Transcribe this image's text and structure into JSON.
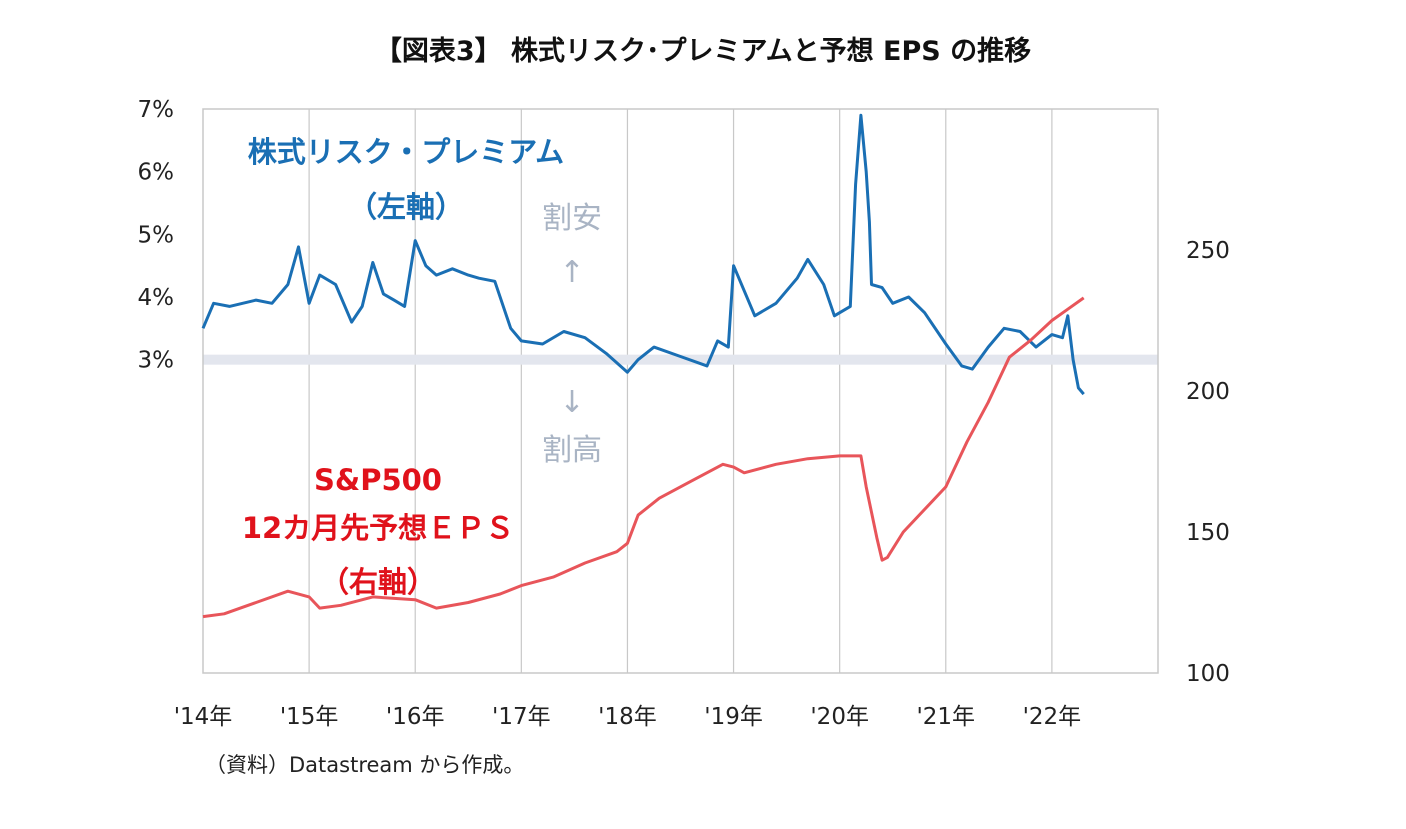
{
  "title": "【図表3】 株式リスク･プレミアムと予想 EPS の推移",
  "source": "（資料）Datastream から作成。",
  "chart_data": {
    "type": "line",
    "x_tick_labels": [
      "'14年",
      "'15年",
      "'16年",
      "'17年",
      "'18年",
      "'19年",
      "'20年",
      "'21年",
      "'22年"
    ],
    "x_range": [
      2014.0,
      2023.0
    ],
    "left_axis": {
      "tick_labels": [
        "7%",
        "6%",
        "5%",
        "4%",
        "3%"
      ],
      "ticks": [
        7,
        6,
        5,
        4,
        3
      ],
      "range": [
        -2,
        7
      ]
    },
    "right_axis": {
      "tick_labels": [
        "250",
        "200",
        "150",
        "100"
      ],
      "ticks": [
        250,
        200,
        150,
        100
      ],
      "range": [
        100,
        300
      ]
    },
    "reference_line": 3.0,
    "annotations": {
      "cheap": "割安",
      "expensive": "割高",
      "up_arrow": "↑",
      "down_arrow": "↓"
    },
    "series": [
      {
        "name": "株式リスク・プレミアム",
        "name_line2": "（左軸）",
        "axis": "left",
        "color": "#1a6fb4",
        "x": [
          2014.0,
          2014.1,
          2014.25,
          2014.5,
          2014.65,
          2014.8,
          2014.9,
          2015.0,
          2015.1,
          2015.25,
          2015.4,
          2015.5,
          2015.6,
          2015.7,
          2015.8,
          2015.9,
          2016.0,
          2016.1,
          2016.2,
          2016.35,
          2016.5,
          2016.6,
          2016.75,
          2016.9,
          2017.0,
          2017.2,
          2017.4,
          2017.6,
          2017.8,
          2018.0,
          2018.1,
          2018.25,
          2018.5,
          2018.75,
          2018.85,
          2018.95,
          2019.0,
          2019.2,
          2019.4,
          2019.6,
          2019.7,
          2019.85,
          2019.95,
          2020.1,
          2020.15,
          2020.2,
          2020.25,
          2020.28,
          2020.3,
          2020.4,
          2020.5,
          2020.65,
          2020.8,
          2021.0,
          2021.15,
          2021.25,
          2021.4,
          2021.55,
          2021.7,
          2021.85,
          2022.0,
          2022.1,
          2022.15,
          2022.2,
          2022.25,
          2022.3
        ],
        "y": [
          3.5,
          3.9,
          3.85,
          3.95,
          3.9,
          4.2,
          4.8,
          3.9,
          4.35,
          4.2,
          3.6,
          3.85,
          4.55,
          4.05,
          3.95,
          3.85,
          4.9,
          4.5,
          4.35,
          4.45,
          4.35,
          4.3,
          4.25,
          3.5,
          3.3,
          3.25,
          3.45,
          3.35,
          3.1,
          2.8,
          3.0,
          3.2,
          3.05,
          2.9,
          3.3,
          3.2,
          4.5,
          3.7,
          3.9,
          4.3,
          4.6,
          4.2,
          3.7,
          3.85,
          5.8,
          6.9,
          6.0,
          5.2,
          4.2,
          4.15,
          3.9,
          4.0,
          3.75,
          3.25,
          2.9,
          2.85,
          3.2,
          3.5,
          3.45,
          3.2,
          3.4,
          3.35,
          3.7,
          3.0,
          2.55,
          2.45
        ]
      },
      {
        "name": "S&P500",
        "name_line2": "12カ月先予想ＥＰＳ",
        "name_line3": "（右軸）",
        "axis": "right",
        "color": "#e8555a",
        "x": [
          2014.0,
          2014.2,
          2014.5,
          2014.8,
          2015.0,
          2015.1,
          2015.3,
          2015.6,
          2016.0,
          2016.2,
          2016.5,
          2016.8,
          2017.0,
          2017.3,
          2017.6,
          2017.9,
          2018.0,
          2018.1,
          2018.3,
          2018.6,
          2018.9,
          2019.0,
          2019.1,
          2019.4,
          2019.7,
          2020.0,
          2020.2,
          2020.25,
          2020.35,
          2020.4,
          2020.45,
          2020.6,
          2020.8,
          2021.0,
          2021.2,
          2021.4,
          2021.6,
          2021.8,
          2022.0,
          2022.15,
          2022.3
        ],
        "y": [
          120,
          121,
          125,
          129,
          127,
          123,
          124,
          127,
          126,
          123,
          125,
          128,
          131,
          134,
          139,
          143,
          146,
          156,
          162,
          168,
          174,
          173,
          171,
          174,
          176,
          177,
          177,
          166,
          148,
          140,
          141,
          150,
          158,
          166,
          182,
          196,
          212,
          218,
          225,
          229,
          233
        ]
      }
    ]
  }
}
